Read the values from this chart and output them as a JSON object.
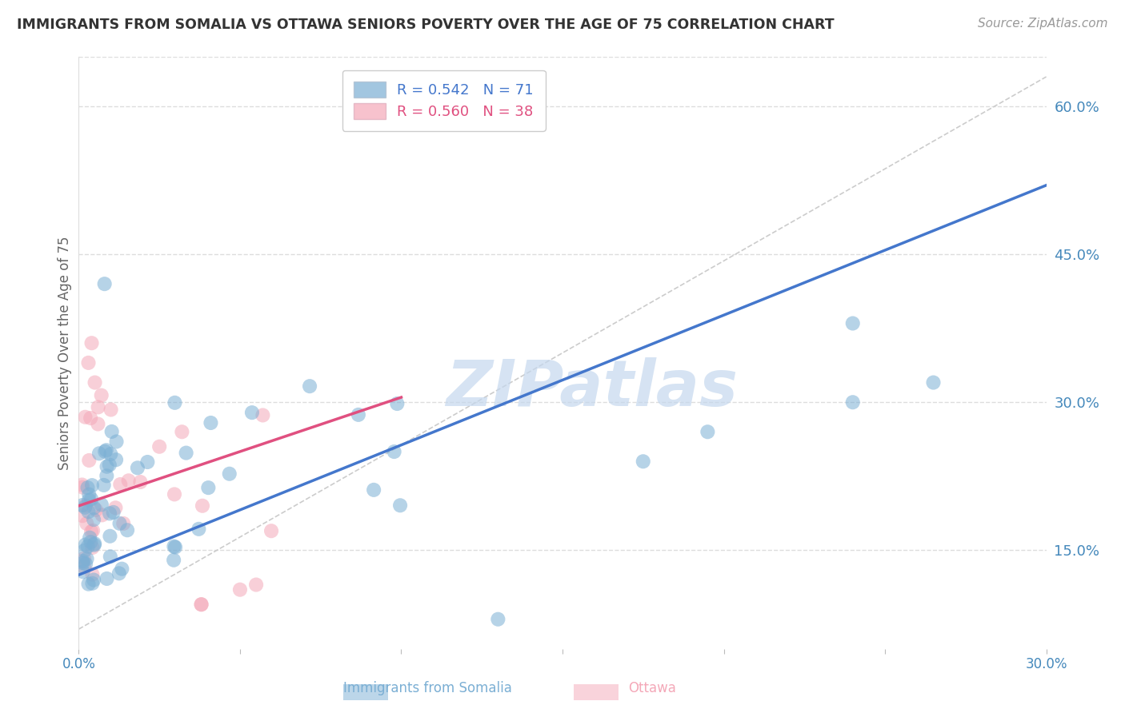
{
  "title": "IMMIGRANTS FROM SOMALIA VS OTTAWA SENIORS POVERTY OVER THE AGE OF 75 CORRELATION CHART",
  "source": "Source: ZipAtlas.com",
  "ylabel": "Seniors Poverty Over the Age of 75",
  "legend_labels": [
    "Immigrants from Somalia",
    "Ottawa"
  ],
  "legend_r": [
    0.542,
    0.56
  ],
  "legend_n": [
    71,
    38
  ],
  "xlim": [
    0.0,
    0.3
  ],
  "ylim": [
    0.05,
    0.65
  ],
  "xticks": [
    0.0,
    0.05,
    0.1,
    0.15,
    0.2,
    0.25,
    0.3
  ],
  "xtick_labels": [
    "0.0%",
    "",
    "",
    "",
    "",
    "",
    "30.0%"
  ],
  "yticks_right": [
    0.15,
    0.3,
    0.45,
    0.6
  ],
  "ytick_labels_right": [
    "15.0%",
    "30.0%",
    "45.0%",
    "60.0%"
  ],
  "blue_color": "#7BAFD4",
  "pink_color": "#F4A8B8",
  "blue_line_color": "#4477CC",
  "pink_line_color": "#E05080",
  "watermark": "ZIPatlas",
  "watermark_color": "#C5D8EE",
  "blue_trend_x": [
    0.0,
    0.3
  ],
  "blue_trend_y": [
    0.125,
    0.52
  ],
  "pink_trend_x": [
    0.0,
    0.1
  ],
  "pink_trend_y": [
    0.195,
    0.305
  ],
  "ref_line_x": [
    0.0,
    0.3
  ],
  "ref_line_y": [
    0.07,
    0.63
  ]
}
